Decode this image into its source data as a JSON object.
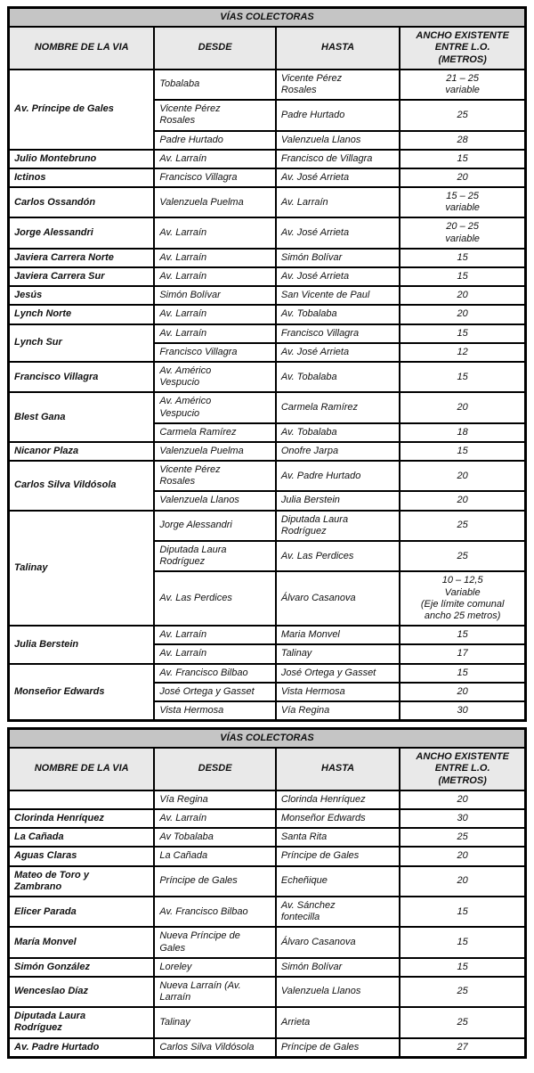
{
  "theme": {
    "title_bg": "#c5c5c5",
    "header_bg": "#e9e9e9",
    "border": "#000000"
  },
  "tables": [
    {
      "title": "VÍAS COLECTORAS",
      "columns": [
        "NOMBRE DE LA VIA",
        "DESDE",
        "HASTA",
        "ANCHO EXISTENTE\nENTRE L.O.\n(METROS)"
      ],
      "groups": [
        {
          "name": "Av. Príncipe de Gales",
          "rows": [
            {
              "desde": "Tobalaba",
              "hasta": "Vicente Pérez\nRosales",
              "ancho": "21 – 25\nvariable"
            },
            {
              "desde": "Vicente Pérez\nRosales",
              "hasta": "Padre Hurtado",
              "ancho": "25"
            },
            {
              "desde": "Padre Hurtado",
              "hasta": "Valenzuela Llanos",
              "ancho": "28"
            }
          ]
        },
        {
          "name": "Julio Montebruno",
          "rows": [
            {
              "desde": "Av. Larraín",
              "hasta": "Francisco de Villagra",
              "ancho": "15"
            }
          ]
        },
        {
          "name": "Ictinos",
          "rows": [
            {
              "desde": "Francisco Villagra",
              "hasta": "Av. José Arrieta",
              "ancho": "20"
            }
          ]
        },
        {
          "name": "Carlos Ossandón",
          "rows": [
            {
              "desde": "Valenzuela Puelma",
              "hasta": "Av. Larraín",
              "ancho": "15 – 25\nvariable"
            }
          ]
        },
        {
          "name": "Jorge Alessandri",
          "rows": [
            {
              "desde": "Av. Larraín",
              "hasta": "Av. José Arrieta",
              "ancho": "20 – 25\nvariable"
            }
          ]
        },
        {
          "name": "Javiera Carrera Norte",
          "rows": [
            {
              "desde": "Av. Larraín",
              "hasta": "Simón Bolívar",
              "ancho": "15"
            }
          ]
        },
        {
          "name": "Javiera Carrera Sur",
          "rows": [
            {
              "desde": "Av. Larraín",
              "hasta": "Av. José Arrieta",
              "ancho": "15"
            }
          ]
        },
        {
          "name": "Jesús",
          "rows": [
            {
              "desde": "Simón Bolívar",
              "hasta": "San Vicente de Paul",
              "ancho": "20"
            }
          ]
        },
        {
          "name": "Lynch Norte",
          "rows": [
            {
              "desde": "Av. Larraín",
              "hasta": "Av. Tobalaba",
              "ancho": "20"
            }
          ]
        },
        {
          "name": "Lynch Sur",
          "rows": [
            {
              "desde": "Av. Larraín",
              "hasta": "Francisco Villagra",
              "ancho": "15"
            },
            {
              "desde": "Francisco Villagra",
              "hasta": "Av. José Arrieta",
              "ancho": "12"
            }
          ]
        },
        {
          "name": "Francisco  Villagra",
          "rows": [
            {
              "desde": "Av. Américo\nVespucio",
              "hasta": "Av. Tobalaba",
              "ancho": "15"
            }
          ]
        },
        {
          "name": "Blest Gana",
          "rows": [
            {
              "desde": "Av. Américo\nVespucio",
              "hasta": "Carmela Ramírez",
              "ancho": "20"
            },
            {
              "desde": "Carmela Ramírez",
              "hasta": "Av. Tobalaba",
              "ancho": "18"
            }
          ]
        },
        {
          "name": "Nicanor Plaza",
          "rows": [
            {
              "desde": "Valenzuela Puelma",
              "hasta": "Onofre Jarpa",
              "ancho": "15"
            }
          ]
        },
        {
          "name": "Carlos Silva Vildósola",
          "rows": [
            {
              "desde": "Vicente Pérez\nRosales",
              "hasta": "Av. Padre Hurtado",
              "ancho": "20"
            },
            {
              "desde": "Valenzuela Llanos",
              "hasta": "Julia Berstein",
              "ancho": "20"
            }
          ]
        },
        {
          "name": "Talinay",
          "rows": [
            {
              "desde": "Jorge Alessandri",
              "hasta": "Diputada Laura\nRodríguez",
              "ancho": "25"
            },
            {
              "desde": "Diputada Laura\nRodríguez",
              "hasta": "Av. Las Perdices",
              "ancho": "25"
            },
            {
              "desde": "Av. Las Perdices",
              "hasta": "Álvaro Casanova",
              "ancho": "10 – 12,5\nVariable\n(Eje límite comunal\nancho 25 metros)"
            }
          ]
        },
        {
          "name": "Julia Berstein",
          "rows": [
            {
              "desde": "Av. Larraín",
              "hasta": "Maria Monvel",
              "ancho": "15"
            },
            {
              "desde": "Av. Larraín",
              "hasta": "Talinay",
              "ancho": "17"
            }
          ]
        },
        {
          "name": "Monseñor Edwards",
          "rows": [
            {
              "desde": "Av. Francisco Bilbao",
              "hasta": "José Ortega y Gasset",
              "ancho": "15"
            },
            {
              "desde": "José Ortega y Gasset",
              "hasta": "Vista Hermosa",
              "ancho": "20"
            },
            {
              "desde": "Vista Hermosa",
              "hasta": "Vía Regina",
              "ancho": "30"
            }
          ]
        }
      ]
    },
    {
      "title": "VÍAS COLECTORAS",
      "columns": [
        "NOMBRE DE LA VIA",
        "DESDE",
        "HASTA",
        "ANCHO EXISTENTE\nENTRE L.O.\n(METROS)"
      ],
      "groups": [
        {
          "name": "",
          "rows": [
            {
              "desde": "Vía Regina",
              "hasta": "Clorinda Henríquez",
              "ancho": "20"
            }
          ]
        },
        {
          "name": "Clorinda Henríquez",
          "rows": [
            {
              "desde": "Av. Larraín",
              "hasta": "Monseñor Edwards",
              "ancho": "30"
            }
          ]
        },
        {
          "name": "La Cañada",
          "rows": [
            {
              "desde": "Av Tobalaba",
              "hasta": "Santa Rita",
              "ancho": "25"
            }
          ]
        },
        {
          "name": "Aguas Claras",
          "rows": [
            {
              "desde": "La Cañada",
              "hasta": "Príncipe de Gales",
              "ancho": "20"
            }
          ]
        },
        {
          "name": "Mateo de Toro y\nZambrano",
          "rows": [
            {
              "desde": "Príncipe de Gales",
              "hasta": "Echeñique",
              "ancho": "20"
            }
          ]
        },
        {
          "name": "Elicer Parada",
          "rows": [
            {
              "desde": "Av. Francisco Bilbao",
              "hasta": "Av. Sánchez\nfontecilla",
              "ancho": "15"
            }
          ]
        },
        {
          "name": "María Monvel",
          "rows": [
            {
              "desde": "Nueva Príncipe de\nGales",
              "hasta": "Álvaro Casanova",
              "ancho": "15"
            }
          ]
        },
        {
          "name": "Simón González",
          "rows": [
            {
              "desde": "Loreley",
              "hasta": "Simón Bolívar",
              "ancho": "15"
            }
          ]
        },
        {
          "name": "Wenceslao Díaz",
          "rows": [
            {
              "desde": "Nueva Larraín (Av.\nLarraín",
              "hasta": "Valenzuela Llanos",
              "ancho": "25"
            }
          ]
        },
        {
          "name": "Diputada Laura\nRodríguez",
          "rows": [
            {
              "desde": "Talinay",
              "hasta": "Arrieta",
              "ancho": "25"
            }
          ]
        },
        {
          "name": "Av. Padre Hurtado",
          "rows": [
            {
              "desde": "Carlos Silva Vildósola",
              "hasta": "Príncipe de Gales",
              "ancho": "27"
            }
          ]
        }
      ]
    }
  ]
}
